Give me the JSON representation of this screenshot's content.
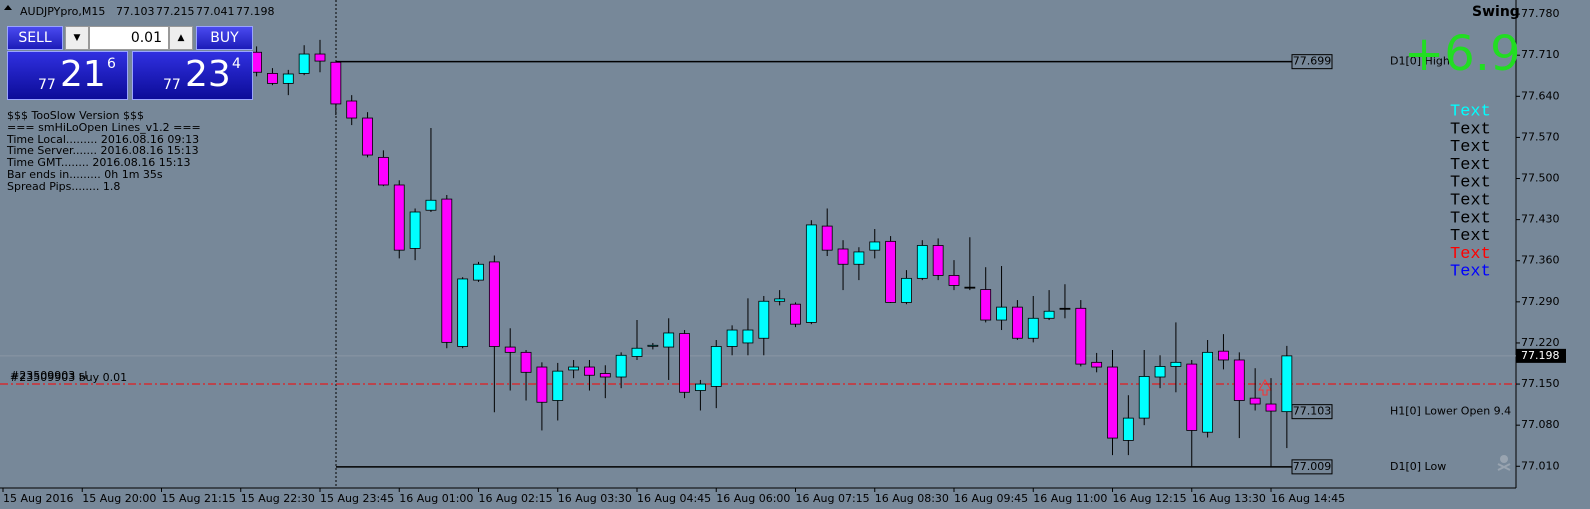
{
  "chart_data": {
    "type": "candlestick",
    "symbol": "AUDJPYpro,M15",
    "categories": [
      "15 Aug 2016",
      null,
      null,
      null,
      null,
      "15 Aug 20:00",
      null,
      null,
      null,
      null,
      "15 Aug 21:15",
      null,
      null,
      null,
      null,
      "15 Aug 22:30",
      null,
      null,
      null,
      null,
      "15 Aug 23:45",
      null,
      null,
      null,
      null,
      "16 Aug 01:00",
      null,
      null,
      null,
      null,
      "16 Aug 02:15",
      null,
      null,
      null,
      null,
      "16 Aug 03:30",
      null,
      null,
      null,
      null,
      "16 Aug 04:45",
      null,
      null,
      null,
      null,
      "16 Aug 06:00",
      null,
      null,
      null,
      null,
      "16 Aug 07:15",
      null,
      null,
      null,
      null,
      "16 Aug 08:30",
      null,
      null,
      null,
      null,
      "16 Aug 09:45",
      null,
      null,
      null,
      null,
      "16 Aug 11:00",
      null,
      null,
      null,
      null,
      "16 Aug 12:15",
      null,
      null,
      null,
      null,
      "16 Aug 13:30",
      null,
      null,
      null,
      null,
      "16 Aug 14:45",
      null
    ],
    "open": [
      null,
      null,
      null,
      null,
      null,
      null,
      null,
      null,
      null,
      null,
      null,
      null,
      null,
      null,
      null,
      null,
      77.715,
      77.679,
      77.662,
      77.679,
      77.712,
      77.698,
      77.632,
      77.603,
      77.536,
      77.489,
      77.381,
      77.446,
      77.465,
      77.214,
      77.327,
      77.358,
      77.213,
      77.204,
      77.179,
      77.122,
      77.174,
      77.179,
      77.168,
      77.162,
      77.197,
      77.215,
      77.213,
      77.236,
      77.139,
      77.146,
      77.214,
      77.22,
      77.228,
      77.291,
      77.286,
      77.255,
      77.419,
      77.38,
      77.354,
      77.378,
      77.393,
      77.289,
      77.33,
      77.386,
      77.335,
      77.315,
      77.311,
      77.259,
      77.281,
      77.228,
      77.262,
      77.279,
      77.279,
      77.187,
      77.179,
      77.054,
      77.092,
      77.162,
      77.18,
      77.184,
      77.068,
      77.206,
      77.191,
      77.126,
      77.116,
      77.103
    ],
    "high": [
      null,
      null,
      null,
      null,
      null,
      null,
      null,
      null,
      null,
      null,
      null,
      null,
      null,
      null,
      null,
      null,
      77.725,
      77.688,
      77.685,
      77.727,
      77.736,
      77.699,
      77.642,
      77.613,
      77.548,
      77.497,
      77.449,
      77.586,
      77.472,
      77.332,
      77.358,
      77.369,
      77.245,
      77.208,
      77.187,
      77.186,
      77.191,
      77.191,
      77.182,
      77.204,
      77.259,
      77.22,
      77.262,
      77.242,
      77.157,
      77.225,
      77.25,
      77.296,
      77.3,
      77.31,
      77.289,
      77.429,
      77.449,
      77.395,
      77.383,
      77.414,
      77.402,
      77.344,
      77.395,
      77.398,
      77.361,
      77.4,
      77.349,
      77.351,
      77.293,
      77.3,
      77.31,
      77.32,
      77.293,
      77.203,
      77.208,
      77.131,
      77.208,
      77.199,
      77.255,
      77.191,
      77.225,
      77.235,
      77.204,
      77.177,
      77.16,
      77.215
    ],
    "low": [
      null,
      null,
      null,
      null,
      null,
      null,
      null,
      null,
      null,
      null,
      null,
      null,
      null,
      null,
      null,
      null,
      77.674,
      77.659,
      77.642,
      77.676,
      77.681,
      77.608,
      77.591,
      77.536,
      77.487,
      77.364,
      77.361,
      77.443,
      77.211,
      77.211,
      77.324,
      77.102,
      77.139,
      77.122,
      77.071,
      77.088,
      77.16,
      77.139,
      77.126,
      77.143,
      77.191,
      77.209,
      77.157,
      77.126,
      77.105,
      77.109,
      77.199,
      77.199,
      77.199,
      77.284,
      77.247,
      77.252,
      77.368,
      77.31,
      77.327,
      77.364,
      77.288,
      77.286,
      77.327,
      77.327,
      77.31,
      77.31,
      77.255,
      77.242,
      77.225,
      77.221,
      77.259,
      77.262,
      77.18,
      77.17,
      77.029,
      77.029,
      77.08,
      77.143,
      77.136,
      77.01,
      77.059,
      77.175,
      77.058,
      77.105,
      77.01,
      77.041
    ],
    "close": [
      null,
      null,
      null,
      null,
      null,
      null,
      null,
      null,
      null,
      null,
      null,
      null,
      null,
      null,
      null,
      null,
      77.681,
      77.662,
      77.678,
      77.712,
      77.7,
      77.627,
      77.603,
      77.54,
      77.489,
      77.378,
      77.443,
      77.463,
      77.221,
      77.329,
      77.354,
      77.214,
      77.204,
      77.17,
      77.119,
      77.172,
      77.179,
      77.165,
      77.162,
      77.199,
      77.211,
      77.216,
      77.237,
      77.136,
      77.15,
      77.214,
      77.242,
      77.242,
      77.291,
      77.295,
      77.252,
      77.421,
      77.378,
      77.354,
      77.375,
      77.392,
      77.289,
      77.33,
      77.386,
      77.335,
      77.318,
      77.315,
      77.259,
      77.281,
      77.228,
      77.262,
      77.274,
      77.279,
      77.184,
      77.179,
      77.058,
      77.092,
      77.163,
      77.18,
      77.187,
      77.071,
      77.204,
      77.191,
      77.122,
      77.116,
      77.104,
      77.198
    ],
    "up_color": "#00ffff",
    "down_color": "#ff00ff",
    "doji_color": "#000000",
    "ylim": [
      76.973,
      77.804
    ],
    "yticks": [
      {
        "value": 77.78,
        "label": "77.780"
      },
      {
        "value": 77.71,
        "label": "77.710"
      },
      {
        "value": 77.64,
        "label": "77.640"
      },
      {
        "value": 77.57,
        "label": "77.570"
      },
      {
        "value": 77.5,
        "label": "77.500"
      },
      {
        "value": 77.43,
        "label": "77.430"
      },
      {
        "value": 77.36,
        "label": "77.360"
      },
      {
        "value": 77.29,
        "label": "77.290"
      },
      {
        "value": 77.22,
        "label": "77.220"
      },
      {
        "value": 77.15,
        "label": "77.150"
      },
      {
        "value": 77.08,
        "label": "77.080"
      },
      {
        "value": 77.01,
        "label": "77.010"
      }
    ],
    "grid": false,
    "levels": [
      {
        "name": "D1[0] High",
        "value": 77.699,
        "line": true
      },
      {
        "name": "H1[0] Lower Open 9.4",
        "value": 77.103,
        "line": false
      },
      {
        "name": "D1[0] Low",
        "value": 77.009,
        "line": true
      }
    ],
    "order": {
      "label": "#23509903 buy 0.01",
      "sl_label": "#23509903 sl",
      "price": 77.15,
      "color": "#ff0000"
    },
    "profit": {
      "text": "+6.9",
      "color": "#22dd22"
    },
    "corner_text": "Swing",
    "text_labels": [
      {
        "text": "Text",
        "color": "#00ffff"
      },
      {
        "text": "Text",
        "color": "#000000"
      },
      {
        "text": "Text",
        "color": "#000000"
      },
      {
        "text": "Text",
        "color": "#000000"
      },
      {
        "text": "Text",
        "color": "#000000"
      },
      {
        "text": "Text",
        "color": "#000000"
      },
      {
        "text": "Text",
        "color": "#000000"
      },
      {
        "text": "Text",
        "color": "#000000"
      },
      {
        "text": "Text",
        "color": "#ff0000"
      },
      {
        "text": "Text",
        "color": "#0000ff"
      }
    ]
  },
  "trade_panel": {
    "sell": "SELL",
    "lot": "0.01",
    "buy": "BUY",
    "bid": {
      "big": "77",
      "figure": "21",
      "pip": "6"
    },
    "ask": {
      "big": "77",
      "figure": "23",
      "pip": "4"
    }
  },
  "info_lines": [
    "$$$ TooSlow Version $$$",
    "=== smHiLoOpen Lines_v1.2 ===",
    "Time Local......... 2016.08.16 09:13",
    "Time Server....... 2016.08.16 15:13",
    "Time GMT........ 2016.08.16 15:13",
    "Bar ends in......... 0h 1m 35s",
    "Spread Pips........ 1.8"
  ]
}
